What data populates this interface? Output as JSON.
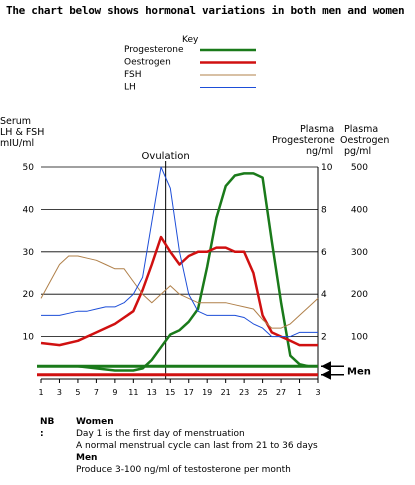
{
  "title": "The chart below shows hormonal variations in both men and women",
  "axis_titles": {
    "left": [
      "Serum",
      "LH & FSH",
      "mIU/ml"
    ],
    "middle": [
      "Plasma",
      "Progesterone",
      "ng/ml"
    ],
    "right": [
      "Plasma",
      "Oestrogen",
      "pg/ml"
    ]
  },
  "annotations": {
    "ovulation": "Ovulation",
    "men": "Men"
  },
  "notes": {
    "nb_label": "NB :",
    "women_heading": "Women",
    "women_lines": [
      "Day 1 is the first day of menstruation",
      "A normal menstrual cycle can last from 21 to 36 days"
    ],
    "men_heading": "Men",
    "men_lines": [
      "Produce 3-100 ng/ml of testosterone per month"
    ]
  },
  "chart_data": {
    "type": "line",
    "legend": {
      "title": "Key",
      "placement": "top-center"
    },
    "grid": true,
    "x_ticks": [
      "1",
      "3",
      "5",
      "7",
      "9",
      "11",
      "13",
      "15",
      "17",
      "19",
      "21",
      "23",
      "25",
      "27",
      "1",
      "3"
    ],
    "ovulation_day": 14.5,
    "axes": {
      "lh_fsh": {
        "label": "Serum LH & FSH mIU/ml",
        "ylim": [
          0,
          50
        ],
        "ticks": [
          "50",
          "40",
          "30",
          "20",
          "10"
        ]
      },
      "progesterone": {
        "label": "Plasma Progesterone ng/ml",
        "ylim": [
          0,
          10
        ],
        "ticks": [
          "10",
          "8",
          "6",
          "4",
          "2"
        ]
      },
      "oestrogen": {
        "label": "Plasma Oestrogen pg/ml",
        "ylim": [
          0,
          500
        ],
        "ticks": [
          "500",
          "400",
          "300",
          "200",
          "100"
        ]
      }
    },
    "series": [
      {
        "name": "Progesterone",
        "color": "#1a7a1a",
        "axis": "progesterone",
        "x": [
          1,
          3,
          5,
          7,
          9,
          11,
          12,
          13,
          14,
          15,
          16,
          17,
          18,
          19,
          20,
          21,
          22,
          23,
          24,
          25,
          26,
          27,
          28,
          29,
          30,
          31
        ],
        "y": [
          0.6,
          0.6,
          0.6,
          0.5,
          0.4,
          0.4,
          0.5,
          0.9,
          1.5,
          2.1,
          2.3,
          2.7,
          3.3,
          5.3,
          7.6,
          9.1,
          9.6,
          9.7,
          9.7,
          9.5,
          6.5,
          3.6,
          1.1,
          0.7,
          0.6,
          0.6
        ]
      },
      {
        "name": "Oestrogen",
        "color": "#d01010",
        "axis": "oestrogen",
        "x": [
          1,
          3,
          5,
          7,
          9,
          11,
          12,
          13,
          14,
          15,
          16,
          17,
          18,
          19,
          20,
          21,
          22,
          23,
          24,
          25,
          26,
          27,
          28,
          29,
          30,
          31
        ],
        "y": [
          85,
          80,
          90,
          110,
          130,
          160,
          210,
          270,
          335,
          300,
          270,
          290,
          300,
          300,
          310,
          310,
          300,
          300,
          250,
          150,
          110,
          100,
          90,
          80,
          80,
          80
        ]
      },
      {
        "name": "FSH",
        "color": "#b0804a",
        "axis": "lh_fsh",
        "x": [
          1,
          2,
          3,
          4,
          5,
          6,
          7,
          8,
          9,
          10,
          11,
          12,
          13,
          14,
          15,
          16,
          17,
          18,
          19,
          20,
          21,
          22,
          23,
          24,
          25,
          26,
          27,
          28,
          29,
          30,
          31
        ],
        "y": [
          19,
          23,
          27,
          29,
          29,
          28.5,
          28,
          27,
          26,
          26,
          23,
          20,
          18,
          20,
          22,
          20,
          19,
          18,
          18,
          18,
          18,
          17.5,
          17,
          16.5,
          14,
          12,
          12,
          13,
          15,
          17,
          19
        ]
      },
      {
        "name": "LH",
        "color": "#1d4ed8",
        "axis": "lh_fsh",
        "x": [
          1,
          2,
          3,
          4,
          5,
          6,
          7,
          8,
          9,
          10,
          11,
          12,
          13,
          14,
          15,
          16,
          17,
          18,
          19,
          20,
          21,
          22,
          23,
          24,
          25,
          26,
          27,
          28,
          29,
          30,
          31
        ],
        "y": [
          15,
          15,
          15,
          15.5,
          16,
          16,
          16.5,
          17,
          17,
          18,
          20,
          24,
          37,
          50,
          45,
          30,
          20,
          16,
          15,
          15,
          15,
          15,
          14.5,
          13,
          12,
          10,
          10,
          10,
          11,
          11,
          11
        ]
      }
    ],
    "men_levels": [
      {
        "name": "Progesterone",
        "color": "#1a7a1a",
        "axis": "progesterone",
        "value": 0.6
      },
      {
        "name": "Oestrogen",
        "color": "#d01010",
        "axis": "oestrogen",
        "value": 10
      }
    ]
  }
}
